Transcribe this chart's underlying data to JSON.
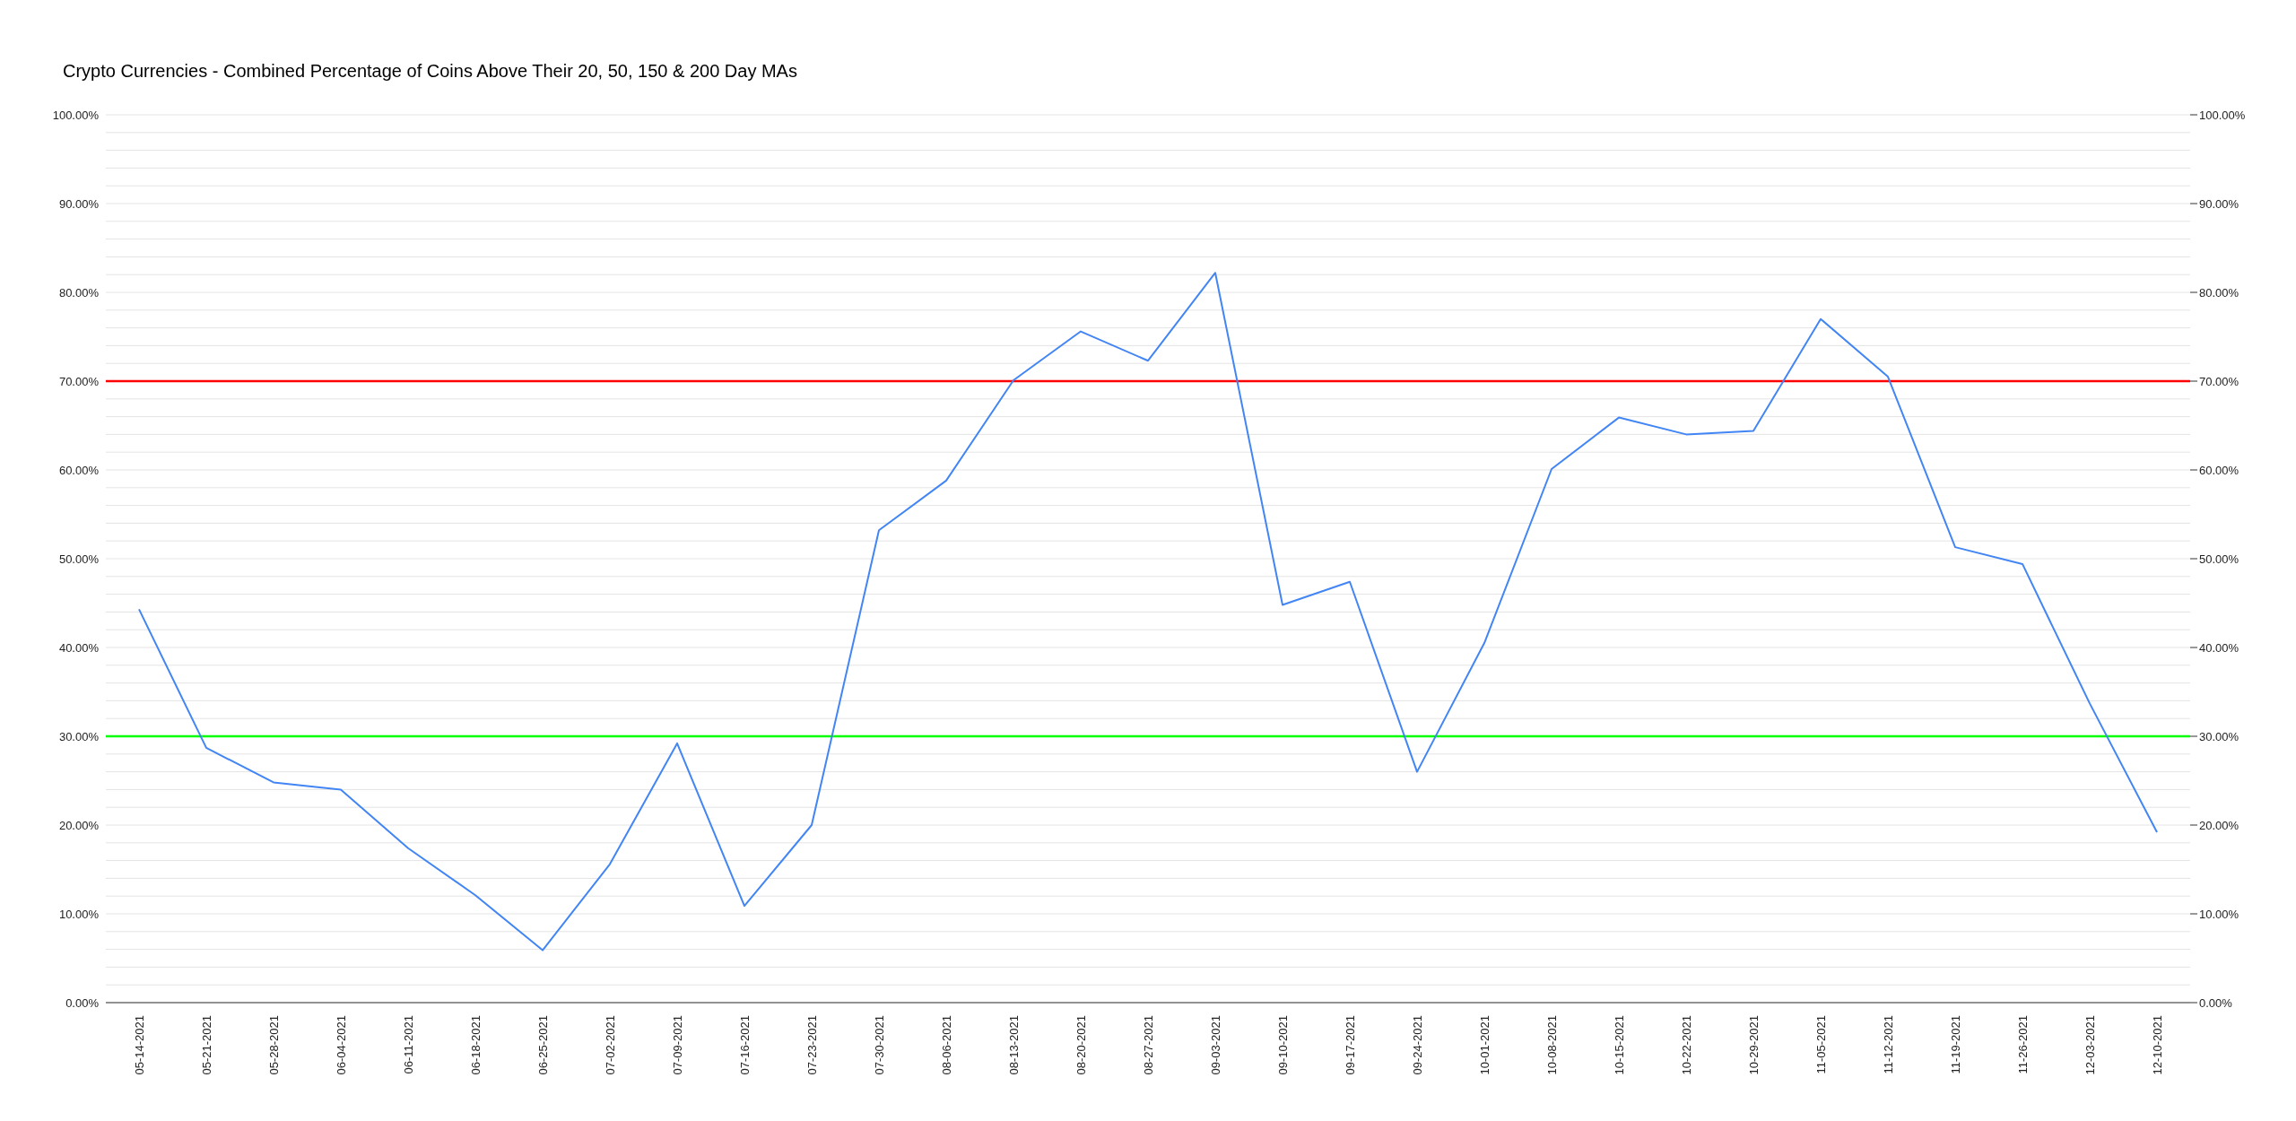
{
  "chart_data": {
    "type": "line",
    "title": "Crypto Currencies - Combined Percentage of Coins Above Their 20, 50, 150 & 200 Day MAs",
    "categories": [
      "05-14-2021",
      "05-21-2021",
      "05-28-2021",
      "06-04-2021",
      "06-11-2021",
      "06-18-2021",
      "06-25-2021",
      "07-02-2021",
      "07-09-2021",
      "07-16-2021",
      "07-23-2021",
      "07-30-2021",
      "08-06-2021",
      "08-13-2021",
      "08-20-2021",
      "08-27-2021",
      "09-03-2021",
      "09-10-2021",
      "09-17-2021",
      "09-24-2021",
      "10-01-2021",
      "10-08-2021",
      "10-15-2021",
      "10-22-2021",
      "10-29-2021",
      "11-05-2021",
      "11-12-2021",
      "11-19-2021",
      "11-26-2021",
      "12-03-2021",
      "12-10-2021"
    ],
    "series": [
      {
        "color": "#4285f4",
        "values": [
          44.3,
          28.7,
          24.8,
          24.0,
          17.4,
          12.1,
          5.9,
          15.6,
          29.2,
          10.9,
          20.0,
          53.2,
          58.8,
          70.1,
          75.6,
          72.3,
          82.2,
          44.8,
          47.4,
          26.0,
          40.5,
          60.1,
          65.9,
          64.0,
          64.4,
          77.0,
          70.5,
          51.3,
          49.4,
          33.7,
          19.2
        ]
      }
    ],
    "ylim": [
      0,
      100
    ],
    "yticks": [
      {
        "value": 0,
        "label": "0.00%"
      },
      {
        "value": 2,
        "label": null
      },
      {
        "value": 4,
        "label": null
      },
      {
        "value": 6,
        "label": null
      },
      {
        "value": 8,
        "label": null
      },
      {
        "value": 10,
        "label": "10.00%"
      },
      {
        "value": 12,
        "label": null
      },
      {
        "value": 14,
        "label": null
      },
      {
        "value": 16,
        "label": null
      },
      {
        "value": 18,
        "label": null
      },
      {
        "value": 20,
        "label": "20.00%"
      },
      {
        "value": 22,
        "label": null
      },
      {
        "value": 24,
        "label": null
      },
      {
        "value": 26,
        "label": null
      },
      {
        "value": 28,
        "label": null
      },
      {
        "value": 30,
        "label": "30.00%"
      },
      {
        "value": 32,
        "label": null
      },
      {
        "value": 34,
        "label": null
      },
      {
        "value": 36,
        "label": null
      },
      {
        "value": 38,
        "label": null
      },
      {
        "value": 40,
        "label": "40.00%"
      },
      {
        "value": 42,
        "label": null
      },
      {
        "value": 44,
        "label": null
      },
      {
        "value": 46,
        "label": null
      },
      {
        "value": 48,
        "label": null
      },
      {
        "value": 50,
        "label": "50.00%"
      },
      {
        "value": 52,
        "label": null
      },
      {
        "value": 54,
        "label": null
      },
      {
        "value": 56,
        "label": null
      },
      {
        "value": 58,
        "label": null
      },
      {
        "value": 60,
        "label": "60.00%"
      },
      {
        "value": 62,
        "label": null
      },
      {
        "value": 64,
        "label": null
      },
      {
        "value": 66,
        "label": null
      },
      {
        "value": 68,
        "label": null
      },
      {
        "value": 70,
        "label": "70.00%"
      },
      {
        "value": 72,
        "label": null
      },
      {
        "value": 74,
        "label": null
      },
      {
        "value": 76,
        "label": null
      },
      {
        "value": 78,
        "label": null
      },
      {
        "value": 80,
        "label": "80.00%"
      },
      {
        "value": 82,
        "label": null
      },
      {
        "value": 84,
        "label": null
      },
      {
        "value": 86,
        "label": null
      },
      {
        "value": 88,
        "label": null
      },
      {
        "value": 90,
        "label": "90.00%"
      },
      {
        "value": 92,
        "label": null
      },
      {
        "value": 94,
        "label": null
      },
      {
        "value": 96,
        "label": null
      },
      {
        "value": 98,
        "label": null
      },
      {
        "value": 100,
        "label": "100.00%"
      }
    ],
    "y2lim": [
      0,
      100
    ],
    "y2ticks": [
      {
        "value": 0,
        "label": "0.00%"
      },
      {
        "value": 10,
        "label": "10.00%"
      },
      {
        "value": 20,
        "label": "20.00%"
      },
      {
        "value": 30,
        "label": "30.00%"
      },
      {
        "value": 40,
        "label": "40.00%"
      },
      {
        "value": 50,
        "label": "50.00%"
      },
      {
        "value": 60,
        "label": "60.00%"
      },
      {
        "value": 70,
        "label": "70.00%"
      },
      {
        "value": 80,
        "label": "80.00%"
      },
      {
        "value": 90,
        "label": "90.00%"
      },
      {
        "value": 100,
        "label": "100.00%"
      }
    ],
    "ref_lines": [
      {
        "axis": "y",
        "value": 70,
        "color": "#ff0000"
      },
      {
        "axis": "y",
        "value": 30,
        "color": "#00ff00"
      }
    ],
    "grid": "y",
    "legend": false,
    "marker": "none",
    "line_style": "solid"
  }
}
